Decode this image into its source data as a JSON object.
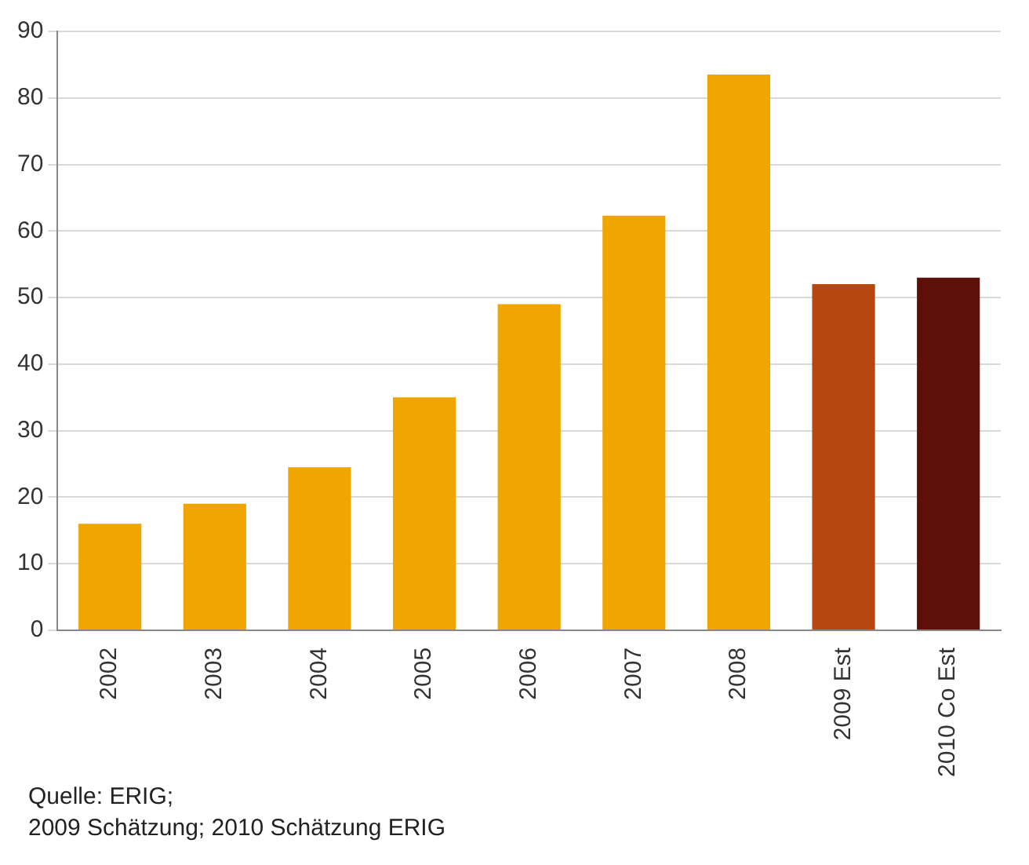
{
  "chart_data": {
    "type": "bar",
    "categories": [
      "2002",
      "2003",
      "2004",
      "2005",
      "2006",
      "2007",
      "2008",
      "2009 Est",
      "2010 Co Est"
    ],
    "values": [
      16,
      19,
      24.5,
      35,
      49,
      62.3,
      83.5,
      52,
      53
    ],
    "colors": [
      "#f0a500",
      "#f0a500",
      "#f0a500",
      "#f0a500",
      "#f0a500",
      "#f0a500",
      "#f0a500",
      "#b5470f",
      "#5c1008"
    ],
    "ylim": [
      0,
      90
    ],
    "yticks": [
      0,
      10,
      20,
      30,
      40,
      50,
      60,
      70,
      80,
      90
    ],
    "grid": "y",
    "legend": false,
    "annotations": [
      "Quelle: ERIG;",
      "2009 Schätzung; 2010 Schätzung ERIG"
    ]
  }
}
